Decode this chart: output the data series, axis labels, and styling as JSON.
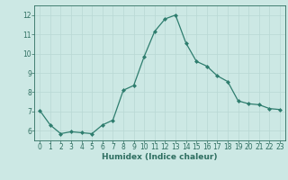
{
  "x": [
    0,
    1,
    2,
    3,
    4,
    5,
    6,
    7,
    8,
    9,
    10,
    11,
    12,
    13,
    14,
    15,
    16,
    17,
    18,
    19,
    20,
    21,
    22,
    23
  ],
  "y": [
    7.05,
    6.3,
    5.85,
    5.95,
    5.9,
    5.85,
    6.3,
    6.55,
    8.1,
    8.35,
    9.85,
    11.15,
    11.8,
    12.0,
    10.55,
    9.6,
    9.35,
    8.85,
    8.55,
    7.55,
    7.4,
    7.35,
    7.15,
    7.1
  ],
  "line_color": "#2e7d6e",
  "marker": "D",
  "marker_size": 2.0,
  "bg_color": "#cce8e4",
  "grid_color": "#b8d8d4",
  "xlabel": "Humidex (Indice chaleur)",
  "xlim": [
    -0.5,
    23.5
  ],
  "ylim": [
    5.5,
    12.5
  ],
  "yticks": [
    6,
    7,
    8,
    9,
    10,
    11,
    12
  ],
  "xticks": [
    0,
    1,
    2,
    3,
    4,
    5,
    6,
    7,
    8,
    9,
    10,
    11,
    12,
    13,
    14,
    15,
    16,
    17,
    18,
    19,
    20,
    21,
    22,
    23
  ],
  "tick_color": "#2e6e60",
  "label_color": "#2e6e60",
  "label_fontsize": 6.5,
  "tick_fontsize": 5.5,
  "linewidth": 0.9
}
